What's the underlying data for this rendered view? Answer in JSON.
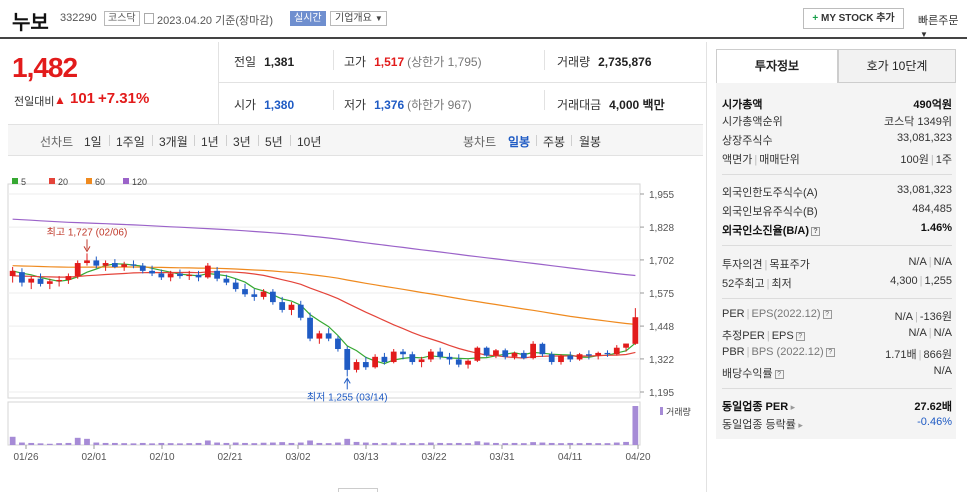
{
  "header": {
    "stock_name": "누보",
    "stock_code": "332290",
    "market_badge": "코스닥",
    "date_text": "2023.04.20  기준(장마감)",
    "realtime_badge": "실시간",
    "company_dropdown": "기업개요",
    "my_stock_label": "MY STOCK 추가",
    "quick_order_label": "빠른주문"
  },
  "price": {
    "current": "1,482",
    "change_label": "전일대비",
    "change_value": "101",
    "change_pct": "+7.31%"
  },
  "stats": {
    "prev_close_label": "전일",
    "prev_close": "1,381",
    "high_label": "고가",
    "high": "1,517",
    "high_sub": "(상한가 1,795)",
    "volume_label": "거래량",
    "volume": "2,735,876",
    "open_label": "시가",
    "open": "1,380",
    "low_label": "저가",
    "low": "1,376",
    "low_sub": "(하한가 967)",
    "amount_label": "거래대금",
    "amount": "4,000 백만"
  },
  "period_tabs": {
    "line_chart": "선차트",
    "d1": "1일",
    "w1": "1주일",
    "m3": "3개월",
    "y1": "1년",
    "y3": "3년",
    "y5": "5년",
    "y10": "10년",
    "candle_chart": "봉차트",
    "daily": "일봉",
    "weekly": "주봉",
    "monthly": "월봉"
  },
  "right_panel": {
    "tab_invest": "투자정보",
    "tab_quotes": "호가 10단계",
    "market_cap_label": "시가총액",
    "market_cap": "490억원",
    "market_cap_rank_label": "시가총액순위",
    "market_cap_rank": "코스닥 1349위",
    "listed_shares_label": "상장주식수",
    "listed_shares": "33,081,323",
    "face_value_label": "액면가",
    "trade_unit_label": "매매단위",
    "face_value": "100원",
    "trade_unit": "1주",
    "foreign_limit_label": "외국인한도주식수(A)",
    "foreign_limit": "33,081,323",
    "foreign_hold_label": "외국인보유주식수(B)",
    "foreign_hold": "484,485",
    "foreign_ratio_label": "외국인소진율(B/A)",
    "foreign_ratio": "1.46%",
    "opinion_label": "투자의견",
    "target_label": "목표주가",
    "opinion": "N/A",
    "target": "N/A",
    "w52_high_label": "52주최고",
    "w52_low_label": "최저",
    "w52_high": "4,300",
    "w52_low": "1,255",
    "per_label": "PER",
    "eps_label": "EPS(2022.12)",
    "per": "N/A",
    "eps": "-136원",
    "est_per_label": "추정PER",
    "est_eps_label": "EPS",
    "est_per": "N/A",
    "est_eps": "N/A",
    "pbr_label": "PBR",
    "bps_label": "BPS (2022.12)",
    "pbr": "1.71배",
    "bps": "866원",
    "dividend_label": "배당수익률",
    "dividend": "N/A",
    "industry_per_label": "동일업종 PER",
    "industry_per": "27.62배",
    "industry_rate_label": "동일업종 등락률",
    "industry_rate": "-0.46%"
  },
  "chart_data": {
    "type": "candlestick",
    "legend": [
      "5",
      "20",
      "60",
      "120"
    ],
    "legend_colors": [
      "#36a832",
      "#e4443a",
      "#ef8a1f",
      "#9b63c9"
    ],
    "up_color": "#e21b1b",
    "down_color": "#1f5bc4",
    "y_ticks": [
      "1,955",
      "1,828",
      "1,702",
      "1,575",
      "1,448",
      "1,322",
      "1,195"
    ],
    "x_ticks": [
      "01/26",
      "02/01",
      "02/10",
      "02/21",
      "03/02",
      "03/13",
      "03/22",
      "03/31",
      "04/11",
      "04/20"
    ],
    "volume_label": "거래량",
    "max_annotation": "최고 1,727 (02/06)",
    "min_annotation": "최저 1,255 (03/14)",
    "candles": [
      [
        1640,
        1675,
        1615,
        1660
      ],
      [
        1655,
        1670,
        1600,
        1615
      ],
      [
        1615,
        1640,
        1590,
        1630
      ],
      [
        1630,
        1650,
        1600,
        1610
      ],
      [
        1610,
        1630,
        1590,
        1620
      ],
      [
        1620,
        1640,
        1600,
        1625
      ],
      [
        1625,
        1650,
        1610,
        1640
      ],
      [
        1640,
        1700,
        1630,
        1690
      ],
      [
        1690,
        1727,
        1680,
        1700
      ],
      [
        1700,
        1715,
        1670,
        1680
      ],
      [
        1680,
        1700,
        1660,
        1690
      ],
      [
        1690,
        1705,
        1670,
        1675
      ],
      [
        1675,
        1695,
        1660,
        1685
      ],
      [
        1685,
        1700,
        1670,
        1680
      ],
      [
        1680,
        1690,
        1650,
        1660
      ],
      [
        1660,
        1680,
        1640,
        1650
      ],
      [
        1650,
        1665,
        1625,
        1635
      ],
      [
        1635,
        1660,
        1620,
        1650
      ],
      [
        1650,
        1665,
        1630,
        1640
      ],
      [
        1640,
        1660,
        1625,
        1645
      ],
      [
        1645,
        1660,
        1620,
        1635
      ],
      [
        1635,
        1690,
        1630,
        1680
      ],
      [
        1660,
        1675,
        1620,
        1630
      ],
      [
        1630,
        1645,
        1605,
        1615
      ],
      [
        1615,
        1630,
        1580,
        1590
      ],
      [
        1590,
        1610,
        1560,
        1570
      ],
      [
        1570,
        1590,
        1545,
        1560
      ],
      [
        1560,
        1590,
        1550,
        1580
      ],
      [
        1580,
        1590,
        1530,
        1540
      ],
      [
        1540,
        1560,
        1500,
        1510
      ],
      [
        1510,
        1540,
        1490,
        1530
      ],
      [
        1530,
        1545,
        1470,
        1480
      ],
      [
        1480,
        1500,
        1390,
        1400
      ],
      [
        1400,
        1430,
        1380,
        1420
      ],
      [
        1420,
        1440,
        1390,
        1400
      ],
      [
        1400,
        1410,
        1350,
        1360
      ],
      [
        1360,
        1370,
        1255,
        1280
      ],
      [
        1280,
        1320,
        1270,
        1310
      ],
      [
        1310,
        1330,
        1280,
        1290
      ],
      [
        1290,
        1340,
        1285,
        1330
      ],
      [
        1330,
        1345,
        1300,
        1310
      ],
      [
        1310,
        1360,
        1305,
        1350
      ],
      [
        1350,
        1360,
        1320,
        1340
      ],
      [
        1340,
        1350,
        1300,
        1310
      ],
      [
        1310,
        1330,
        1290,
        1320
      ],
      [
        1320,
        1360,
        1310,
        1350
      ],
      [
        1350,
        1365,
        1320,
        1330
      ],
      [
        1330,
        1345,
        1300,
        1320
      ],
      [
        1320,
        1340,
        1290,
        1300
      ],
      [
        1300,
        1320,
        1285,
        1315
      ],
      [
        1315,
        1370,
        1310,
        1365
      ],
      [
        1365,
        1370,
        1330,
        1335
      ],
      [
        1335,
        1360,
        1325,
        1355
      ],
      [
        1355,
        1362,
        1320,
        1330
      ],
      [
        1330,
        1350,
        1320,
        1345
      ],
      [
        1345,
        1355,
        1320,
        1325
      ],
      [
        1325,
        1390,
        1320,
        1380
      ],
      [
        1380,
        1385,
        1330,
        1340
      ],
      [
        1340,
        1350,
        1300,
        1310
      ],
      [
        1310,
        1340,
        1300,
        1335
      ],
      [
        1335,
        1350,
        1310,
        1320
      ],
      [
        1320,
        1345,
        1315,
        1340
      ],
      [
        1340,
        1355,
        1320,
        1335
      ],
      [
        1335,
        1350,
        1320,
        1345
      ],
      [
        1345,
        1355,
        1330,
        1340
      ],
      [
        1340,
        1375,
        1335,
        1365
      ],
      [
        1365,
        1380,
        1350,
        1381
      ],
      [
        1380,
        1517,
        1376,
        1482
      ]
    ],
    "volumes": [
      40,
      12,
      10,
      8,
      6,
      9,
      10,
      35,
      30,
      12,
      10,
      10,
      9,
      8,
      10,
      8,
      10,
      9,
      8,
      9,
      10,
      22,
      12,
      10,
      12,
      10,
      9,
      11,
      12,
      14,
      10,
      12,
      22,
      10,
      9,
      12,
      30,
      15,
      12,
      10,
      9,
      12,
      9,
      10,
      9,
      12,
      10,
      9,
      10,
      9,
      18,
      12,
      10,
      9,
      10,
      9,
      14,
      12,
      10,
      9,
      10,
      9,
      10,
      9,
      9,
      12,
      15,
      190
    ]
  }
}
